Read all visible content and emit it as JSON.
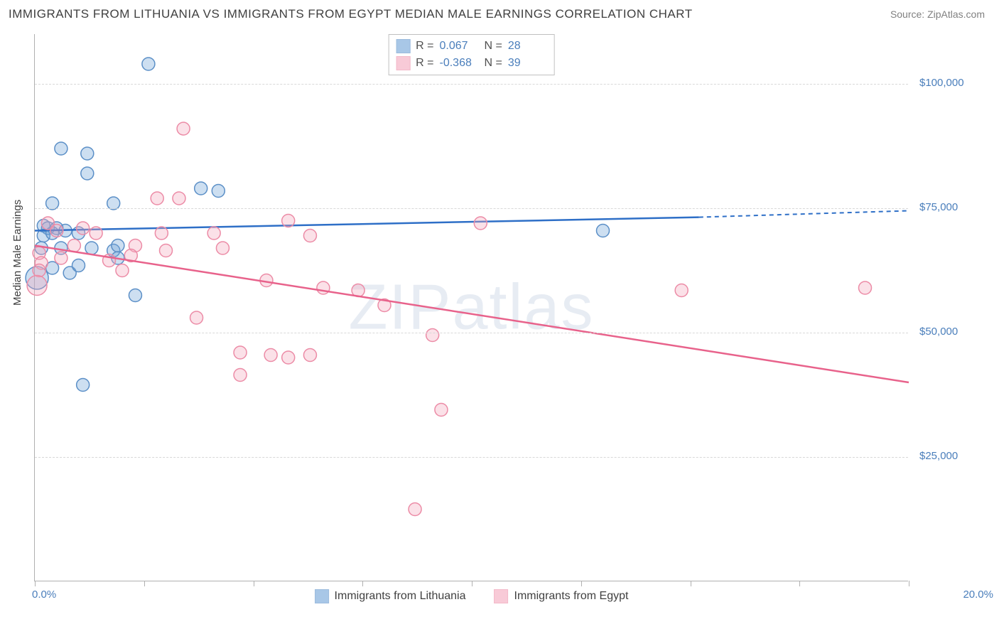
{
  "title": "IMMIGRANTS FROM LITHUANIA VS IMMIGRANTS FROM EGYPT MEDIAN MALE EARNINGS CORRELATION CHART",
  "source": "Source: ZipAtlas.com",
  "ylabel": "Median Male Earnings",
  "watermark": "ZIPatlas",
  "chart": {
    "type": "scatter",
    "xlim": [
      0.0,
      20.0
    ],
    "ylim": [
      0,
      110000
    ],
    "yticks": [
      {
        "v": 25000,
        "label": "$25,000"
      },
      {
        "v": 50000,
        "label": "$50,000"
      },
      {
        "v": 75000,
        "label": "$75,000"
      },
      {
        "v": 100000,
        "label": "$100,000"
      }
    ],
    "xtick_labels": {
      "left": "0.0%",
      "right": "20.0%"
    },
    "xtick_positions": [
      0,
      2.5,
      5,
      7.5,
      10,
      12.5,
      15,
      17.5,
      20
    ],
    "background_color": "#ffffff",
    "grid_color": "#d8d8d8",
    "marker_radius": 9,
    "marker_stroke_width": 1.5,
    "marker_fill_opacity": 0.35,
    "trend_line_width": 2.5,
    "series": [
      {
        "name": "Immigrants from Lithuania",
        "color": "#6fa3d8",
        "stroke": "#5b8fc7",
        "line_color": "#2e6fc7",
        "R": "0.067",
        "N": "28",
        "points": [
          {
            "x": 2.6,
            "y": 104000
          },
          {
            "x": 0.6,
            "y": 87000
          },
          {
            "x": 1.2,
            "y": 86000
          },
          {
            "x": 1.2,
            "y": 82000
          },
          {
            "x": 0.4,
            "y": 76000
          },
          {
            "x": 1.8,
            "y": 76000
          },
          {
            "x": 3.8,
            "y": 79000
          },
          {
            "x": 4.2,
            "y": 78500
          },
          {
            "x": 0.2,
            "y": 71500
          },
          {
            "x": 0.3,
            "y": 71000
          },
          {
            "x": 0.5,
            "y": 71000
          },
          {
            "x": 0.7,
            "y": 70500
          },
          {
            "x": 0.2,
            "y": 69500
          },
          {
            "x": 0.4,
            "y": 70000
          },
          {
            "x": 1.0,
            "y": 70000
          },
          {
            "x": 1.8,
            "y": 66500
          },
          {
            "x": 0.15,
            "y": 67000
          },
          {
            "x": 0.6,
            "y": 67000
          },
          {
            "x": 1.3,
            "y": 67000
          },
          {
            "x": 1.9,
            "y": 65000
          },
          {
            "x": 1.9,
            "y": 67500
          },
          {
            "x": 0.4,
            "y": 63000
          },
          {
            "x": 0.8,
            "y": 62000
          },
          {
            "x": 1.0,
            "y": 63500
          },
          {
            "x": 0.05,
            "y": 61000,
            "r": 16
          },
          {
            "x": 2.3,
            "y": 57500
          },
          {
            "x": 1.1,
            "y": 39500
          },
          {
            "x": 13.0,
            "y": 70500
          }
        ],
        "trend": {
          "x1": 0,
          "y1": 70500,
          "x2": 15.2,
          "y2": 73200,
          "dash_x2": 20,
          "dash_y2": 74500
        }
      },
      {
        "name": "Immigrants from Egypt",
        "color": "#f4a8bd",
        "stroke": "#ec8ba6",
        "line_color": "#e8628b",
        "R": "-0.368",
        "N": "39",
        "points": [
          {
            "x": 3.4,
            "y": 91000
          },
          {
            "x": 2.8,
            "y": 77000
          },
          {
            "x": 3.3,
            "y": 77000
          },
          {
            "x": 0.3,
            "y": 72000
          },
          {
            "x": 0.5,
            "y": 70500
          },
          {
            "x": 1.1,
            "y": 71000
          },
          {
            "x": 1.4,
            "y": 70000
          },
          {
            "x": 2.9,
            "y": 70000
          },
          {
            "x": 4.1,
            "y": 70000
          },
          {
            "x": 5.8,
            "y": 72500
          },
          {
            "x": 6.3,
            "y": 69500
          },
          {
            "x": 10.2,
            "y": 72000
          },
          {
            "x": 0.1,
            "y": 66000
          },
          {
            "x": 0.9,
            "y": 67500
          },
          {
            "x": 2.3,
            "y": 67500
          },
          {
            "x": 2.2,
            "y": 65500
          },
          {
            "x": 3.0,
            "y": 66500
          },
          {
            "x": 4.3,
            "y": 67000
          },
          {
            "x": 0.15,
            "y": 64000
          },
          {
            "x": 0.1,
            "y": 62500
          },
          {
            "x": 2.0,
            "y": 62500
          },
          {
            "x": 0.05,
            "y": 59500,
            "r": 14
          },
          {
            "x": 6.6,
            "y": 59000
          },
          {
            "x": 7.4,
            "y": 58500
          },
          {
            "x": 5.3,
            "y": 60500
          },
          {
            "x": 3.7,
            "y": 53000
          },
          {
            "x": 9.1,
            "y": 49500
          },
          {
            "x": 8.0,
            "y": 55500
          },
          {
            "x": 4.7,
            "y": 46000
          },
          {
            "x": 5.8,
            "y": 45000
          },
          {
            "x": 5.4,
            "y": 45500
          },
          {
            "x": 6.3,
            "y": 45500
          },
          {
            "x": 4.7,
            "y": 41500
          },
          {
            "x": 9.3,
            "y": 34500
          },
          {
            "x": 14.8,
            "y": 58500
          },
          {
            "x": 19.0,
            "y": 59000
          },
          {
            "x": 8.7,
            "y": 14500
          },
          {
            "x": 1.7,
            "y": 64500
          },
          {
            "x": 0.6,
            "y": 65000
          }
        ],
        "trend": {
          "x1": 0,
          "y1": 67500,
          "x2": 20,
          "y2": 40000
        }
      }
    ]
  }
}
